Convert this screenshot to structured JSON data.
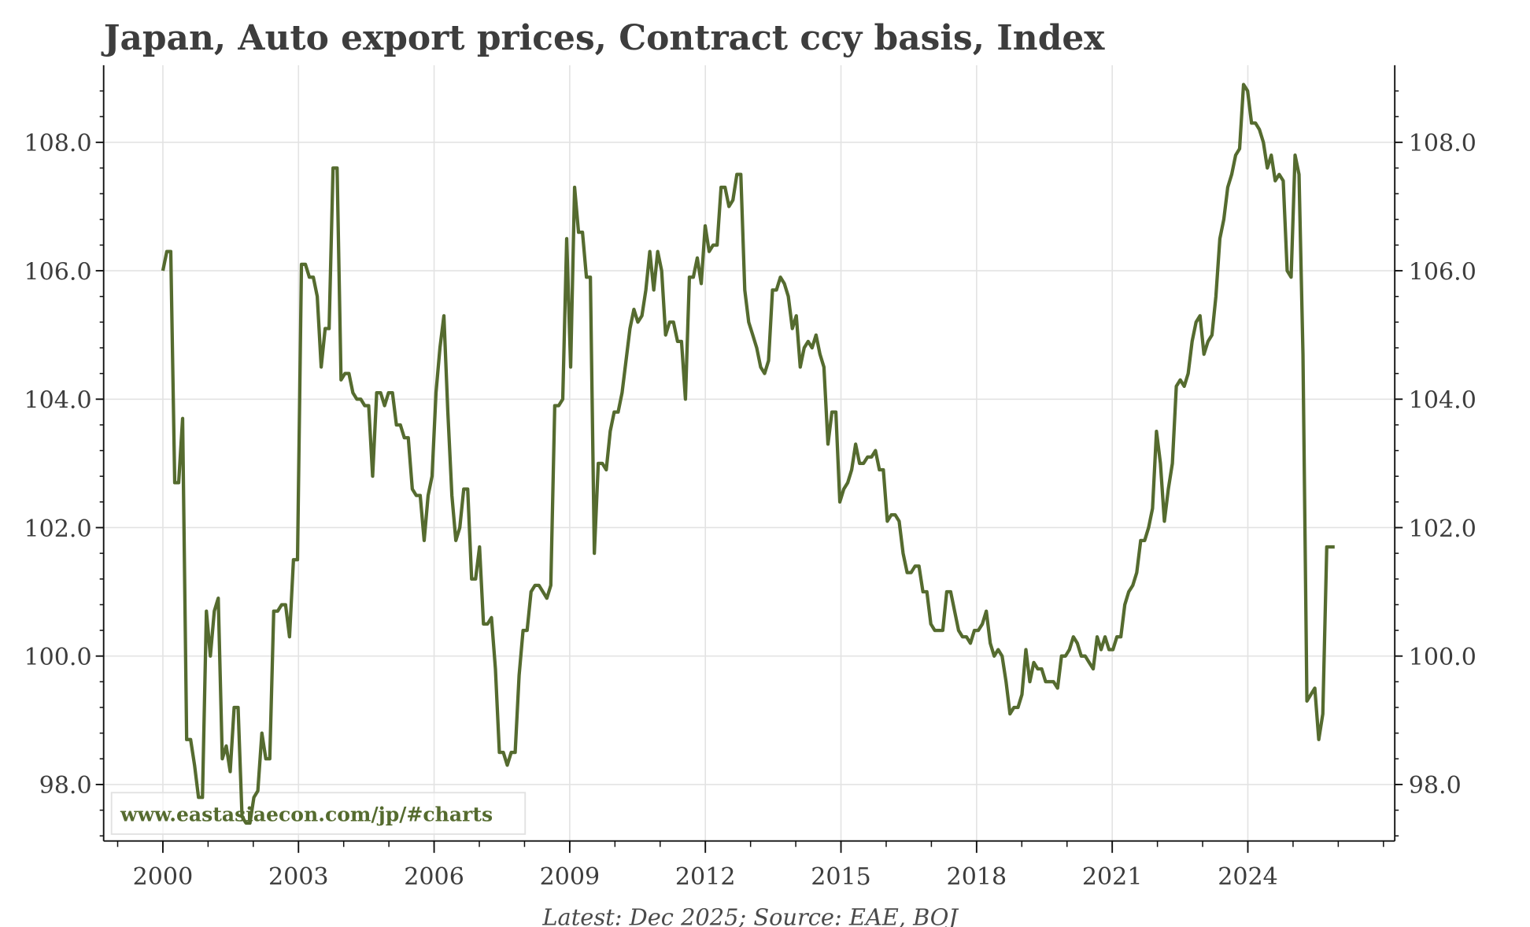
{
  "chart_data": {
    "type": "line",
    "title": "Japan, Auto export prices, Contract ccy basis, Index",
    "source": "Latest: Dec 2025; Source: EAE, BOJ",
    "watermark": "www.eastasiaecon.com/jp/#charts",
    "xlabel": "",
    "ylabel": "",
    "start": 2000.0,
    "end": 2025.92,
    "frequency": "monthly (approx.)",
    "xlim": [
      1998.69,
      2027.25
    ],
    "ylim": [
      97.12,
      109.2
    ],
    "x_ticks": [
      "2000",
      "2003",
      "2006",
      "2009",
      "2012",
      "2015",
      "2018",
      "2021",
      "2024"
    ],
    "y_ticks": [
      "98.0",
      "100.0",
      "102.0",
      "104.0",
      "106.0",
      "108.0"
    ],
    "grid": true,
    "line_color": "#556b2f",
    "series": [
      {
        "name": "Auto export prices index",
        "values": [
          106.0,
          106.3,
          106.3,
          102.7,
          102.7,
          103.7,
          98.7,
          98.7,
          98.3,
          97.8,
          97.8,
          100.7,
          100.0,
          100.7,
          100.9,
          98.4,
          98.6,
          98.2,
          99.2,
          99.2,
          97.5,
          97.4,
          97.4,
          97.8,
          97.9,
          98.8,
          98.4,
          98.4,
          100.7,
          100.7,
          100.8,
          100.8,
          100.3,
          101.5,
          101.5,
          106.1,
          106.1,
          105.9,
          105.9,
          105.6,
          104.5,
          105.1,
          105.1,
          107.6,
          107.6,
          104.3,
          104.4,
          104.4,
          104.1,
          104.0,
          104.0,
          103.9,
          103.9,
          102.8,
          104.1,
          104.1,
          103.9,
          104.1,
          104.1,
          103.6,
          103.6,
          103.4,
          103.4,
          102.6,
          102.5,
          102.5,
          101.8,
          102.5,
          102.8,
          104.1,
          104.8,
          105.3,
          103.8,
          102.5,
          101.8,
          102.0,
          102.6,
          102.6,
          101.2,
          101.2,
          101.7,
          100.5,
          100.5,
          100.6,
          99.8,
          98.5,
          98.5,
          98.3,
          98.5,
          98.5,
          99.7,
          100.4,
          100.4,
          101.0,
          101.1,
          101.1,
          101.0,
          100.9,
          101.1,
          103.9,
          103.9,
          104.0,
          106.5,
          104.5,
          107.3,
          106.6,
          106.6,
          105.9,
          105.9,
          101.6,
          103.0,
          103.0,
          102.9,
          103.5,
          103.8,
          103.8,
          104.1,
          104.6,
          105.1,
          105.4,
          105.2,
          105.3,
          105.7,
          106.3,
          105.7,
          106.3,
          106.0,
          105.0,
          105.2,
          105.2,
          104.9,
          104.9,
          104.0,
          105.9,
          105.9,
          106.2,
          105.8,
          106.7,
          106.3,
          106.4,
          106.4,
          107.3,
          107.3,
          107.0,
          107.1,
          107.5,
          107.5,
          105.7,
          105.2,
          105.0,
          104.8,
          104.5,
          104.4,
          104.6,
          105.7,
          105.7,
          105.9,
          105.8,
          105.6,
          105.1,
          105.3,
          104.5,
          104.8,
          104.9,
          104.8,
          105.0,
          104.7,
          104.5,
          103.3,
          103.8,
          103.8,
          102.4,
          102.6,
          102.7,
          102.9,
          103.3,
          103.0,
          103.0,
          103.1,
          103.1,
          103.2,
          102.9,
          102.9,
          102.1,
          102.2,
          102.2,
          102.1,
          101.6,
          101.3,
          101.3,
          101.4,
          101.4,
          101.0,
          101.0,
          100.5,
          100.4,
          100.4,
          100.4,
          101.0,
          101.0,
          100.7,
          100.4,
          100.3,
          100.3,
          100.2,
          100.4,
          100.4,
          100.5,
          100.7,
          100.2,
          100.0,
          100.1,
          100.0,
          99.6,
          99.1,
          99.2,
          99.2,
          99.4,
          100.1,
          99.6,
          99.9,
          99.8,
          99.8,
          99.6,
          99.6,
          99.6,
          99.5,
          100.0,
          100.0,
          100.1,
          100.3,
          100.2,
          100.0,
          100.0,
          99.9,
          99.8,
          100.3,
          100.1,
          100.3,
          100.1,
          100.1,
          100.3,
          100.3,
          100.8,
          101.0,
          101.1,
          101.3,
          101.8,
          101.8,
          102.0,
          102.3,
          103.5,
          103.0,
          102.1,
          102.6,
          103.0,
          104.2,
          104.3,
          104.2,
          104.4,
          104.9,
          105.2,
          105.3,
          104.7,
          104.9,
          105.0,
          105.6,
          106.5,
          106.8,
          107.3,
          107.5,
          107.8,
          107.9,
          108.9,
          108.8,
          108.3,
          108.3,
          108.2,
          108.0,
          107.6,
          107.8,
          107.4,
          107.5,
          107.4,
          106.0,
          105.9,
          107.8,
          107.5,
          104.7,
          99.3,
          99.4,
          99.5,
          98.7,
          99.1,
          101.7,
          101.7,
          101.7
        ]
      }
    ]
  }
}
